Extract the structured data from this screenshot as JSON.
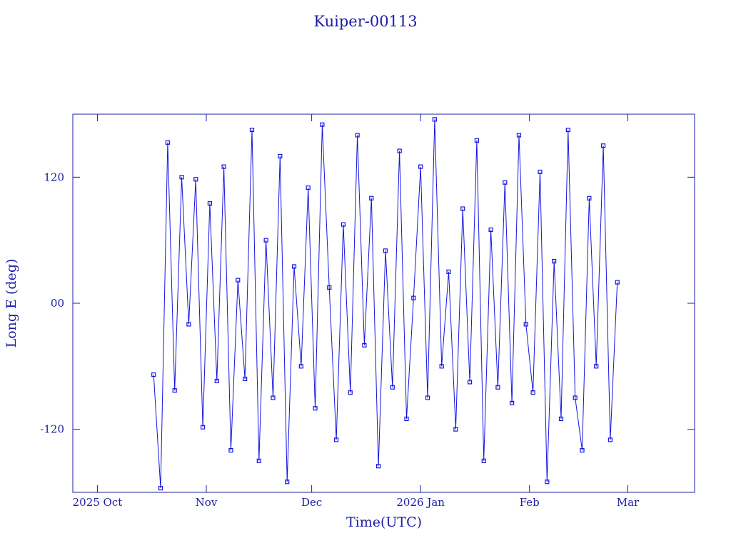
{
  "chart_data": {
    "type": "line",
    "title": "Kuiper-00113",
    "x_label": "Time(UTC)",
    "y_label": "Long E (deg)",
    "color": "#1515e0",
    "xlim": [
      "2025-09-24",
      "2026-03-20"
    ],
    "xticks": [
      {
        "value": "2025-10-01",
        "label": "2025 Oct"
      },
      {
        "value": "2025-11-01",
        "label": "Nov"
      },
      {
        "value": "2025-12-01",
        "label": "Dec"
      },
      {
        "value": "2026-01-01",
        "label": "2026 Jan"
      },
      {
        "value": "2026-02-01",
        "label": "Feb"
      },
      {
        "value": "2026-03-01",
        "label": "Mar"
      }
    ],
    "ylim": [
      -180,
      180
    ],
    "yticks": [
      -120,
      {
        "value": 0,
        "label": "00"
      },
      120
    ],
    "x": [
      "2025-10-17",
      "2025-10-19",
      "2025-10-21",
      "2025-10-23",
      "2025-10-25",
      "2025-10-27",
      "2025-10-29",
      "2025-10-31",
      "2025-11-02",
      "2025-11-04",
      "2025-11-06",
      "2025-11-08",
      "2025-11-10",
      "2025-11-12",
      "2025-11-14",
      "2025-11-16",
      "2025-11-18",
      "2025-11-20",
      "2025-11-22",
      "2025-11-24",
      "2025-11-26",
      "2025-11-28",
      "2025-11-30",
      "2025-12-02",
      "2025-12-04",
      "2025-12-06",
      "2025-12-08",
      "2025-12-10",
      "2025-12-12",
      "2025-12-14",
      "2025-12-16",
      "2025-12-18",
      "2025-12-20",
      "2025-12-22",
      "2025-12-24",
      "2025-12-26",
      "2025-12-28",
      "2025-12-30",
      "2026-01-01",
      "2026-01-03",
      "2026-01-05",
      "2026-01-07",
      "2026-01-09",
      "2026-01-11",
      "2026-01-13",
      "2026-01-15",
      "2026-01-17",
      "2026-01-19",
      "2026-01-21",
      "2026-01-23",
      "2026-01-25",
      "2026-01-27",
      "2026-01-29",
      "2026-01-31",
      "2026-02-02",
      "2026-02-04",
      "2026-02-06",
      "2026-02-08",
      "2026-02-10",
      "2026-02-12",
      "2026-02-14",
      "2026-02-16",
      "2026-02-18",
      "2026-02-20",
      "2026-02-22",
      "2026-02-24",
      "2026-02-26"
    ],
    "values": [
      -68,
      -176,
      153,
      -83,
      120,
      -20,
      118,
      -118,
      95,
      -74,
      130,
      -140,
      22,
      -72,
      165,
      -150,
      60,
      -90,
      140,
      -170,
      35,
      -60,
      110,
      -100,
      170,
      15,
      -130,
      75,
      -85,
      160,
      -40,
      100,
      -155,
      50,
      -80,
      145,
      -110,
      5,
      130,
      -90,
      175,
      -60,
      30,
      -120,
      90,
      -75,
      155,
      -150,
      70,
      -80,
      115,
      -95,
      160,
      -20,
      -85,
      125,
      -170,
      40,
      -110,
      165,
      -90,
      -140,
      100,
      -60,
      150,
      -130,
      20
    ]
  }
}
